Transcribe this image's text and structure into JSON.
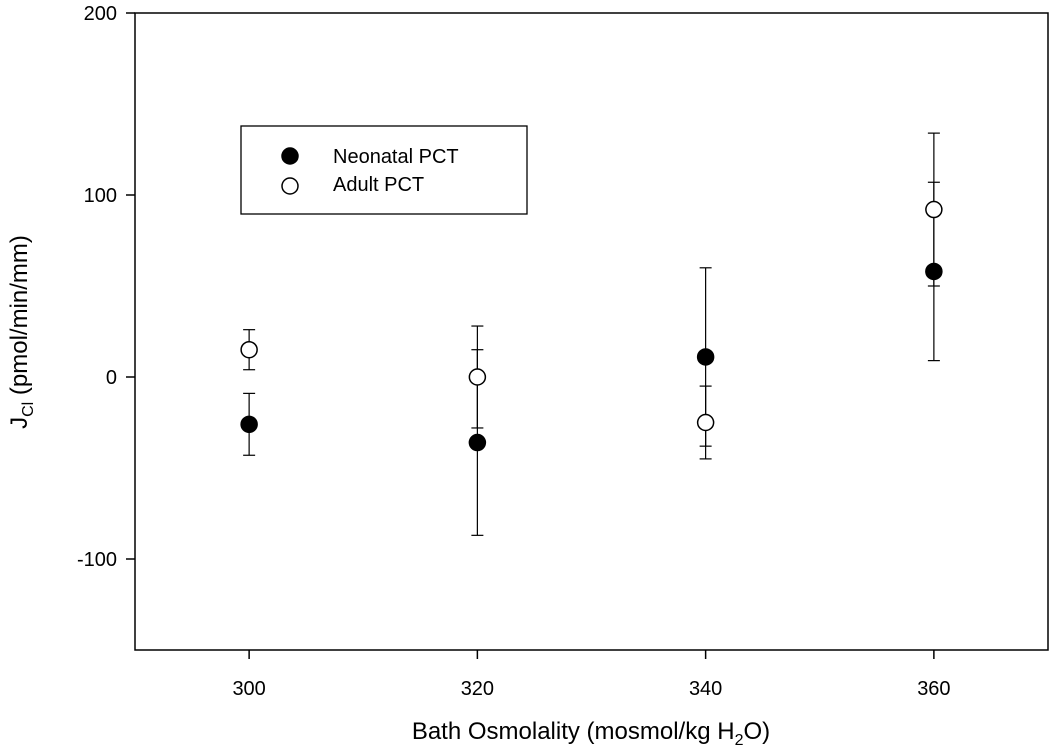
{
  "chart_data": {
    "type": "scatter",
    "title": "",
    "xlabel": {
      "main": "Bath Osmolality (mosmol/kg H",
      "sub": "2",
      "tail": "O)"
    },
    "ylabel": {
      "main": "J",
      "sub": "Cl",
      "tail": " (pmol/min/mm)"
    },
    "xlim": [
      290,
      370
    ],
    "ylim": [
      -150,
      200
    ],
    "x_ticks": [
      300,
      320,
      340,
      360
    ],
    "x_tick_labels": [
      "300",
      "320",
      "340",
      "360"
    ],
    "y_ticks": [
      -100,
      0,
      100,
      200
    ],
    "y_tick_labels": [
      "-100",
      "0",
      "100",
      "200"
    ],
    "grid": false,
    "legend_position": "upper-left",
    "series": [
      {
        "name": "Neonatal PCT",
        "marker": "filled-circle",
        "points": [
          {
            "x": 300,
            "y": -26,
            "err": 17
          },
          {
            "x": 320,
            "y": -36,
            "err": 51
          },
          {
            "x": 340,
            "y": 11,
            "err": 49
          },
          {
            "x": 360,
            "y": 58,
            "err": 49
          }
        ]
      },
      {
        "name": "Adult PCT",
        "marker": "open-circle",
        "points": [
          {
            "x": 300,
            "y": 15,
            "err": 11
          },
          {
            "x": 320,
            "y": 0,
            "err": 28
          },
          {
            "x": 340,
            "y": -25,
            "err": 20
          },
          {
            "x": 360,
            "y": 92,
            "err": 42
          }
        ]
      }
    ]
  }
}
